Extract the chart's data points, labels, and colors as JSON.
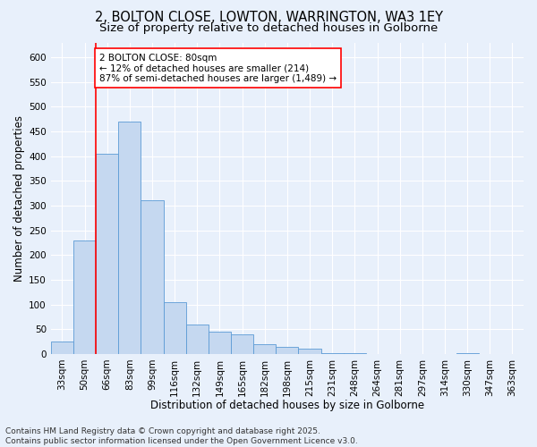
{
  "title_line1": "2, BOLTON CLOSE, LOWTON, WARRINGTON, WA3 1EY",
  "title_line2": "Size of property relative to detached houses in Golborne",
  "xlabel": "Distribution of detached houses by size in Golborne",
  "ylabel": "Number of detached properties",
  "categories": [
    "33sqm",
    "50sqm",
    "66sqm",
    "83sqm",
    "99sqm",
    "116sqm",
    "132sqm",
    "149sqm",
    "165sqm",
    "182sqm",
    "198sqm",
    "215sqm",
    "231sqm",
    "248sqm",
    "264sqm",
    "281sqm",
    "297sqm",
    "314sqm",
    "330sqm",
    "347sqm",
    "363sqm"
  ],
  "values": [
    25,
    230,
    405,
    470,
    310,
    105,
    60,
    45,
    40,
    20,
    15,
    10,
    2,
    1,
    0,
    0,
    0,
    0,
    1,
    0,
    0
  ],
  "bar_color": "#c5d8f0",
  "bar_edge_color": "#5b9bd5",
  "red_line_x": 1.5,
  "annotation_text": "2 BOLTON CLOSE: 80sqm\n← 12% of detached houses are smaller (214)\n87% of semi-detached houses are larger (1,489) →",
  "annotation_box_color": "white",
  "annotation_box_edge_color": "red",
  "ylim": [
    0,
    630
  ],
  "yticks": [
    0,
    50,
    100,
    150,
    200,
    250,
    300,
    350,
    400,
    450,
    500,
    550,
    600
  ],
  "footer_text": "Contains HM Land Registry data © Crown copyright and database right 2025.\nContains public sector information licensed under the Open Government Licence v3.0.",
  "bg_color": "#e8f0fb",
  "plot_bg_color": "#e8f0fb",
  "grid_color": "#ffffff",
  "title_fontsize": 10.5,
  "subtitle_fontsize": 9.5,
  "axis_label_fontsize": 8.5,
  "tick_fontsize": 7.5,
  "footer_fontsize": 6.5,
  "annotation_fontsize": 7.5
}
